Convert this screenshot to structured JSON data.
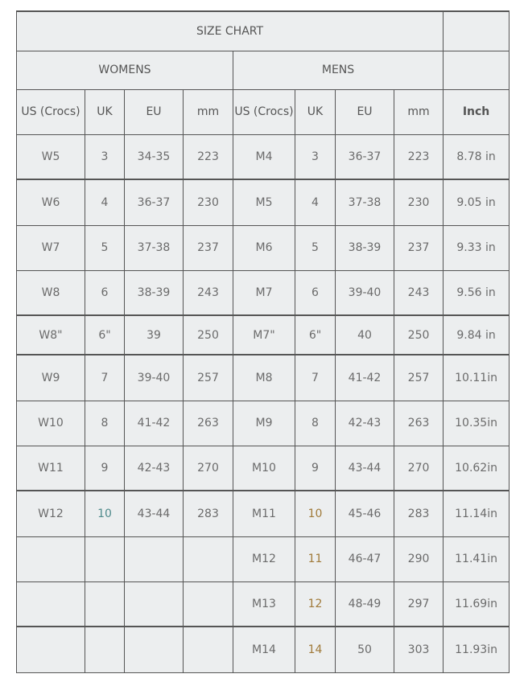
{
  "title": "SIZE CHART",
  "groups": {
    "womens": "WOMENS",
    "mens": "MENS"
  },
  "headers": [
    "US (Crocs)",
    "UK",
    "EU",
    "mm",
    "US (Crocs)",
    "UK",
    "EU",
    "mm",
    "Inch"
  ],
  "rows": [
    [
      "W5",
      "3",
      "34-35",
      "223",
      "M4",
      "3",
      "36-37",
      "223",
      "8.78 in"
    ],
    [
      "W6",
      "4",
      "36-37",
      "230",
      "M5",
      "4",
      "37-38",
      "230",
      "9.05 in"
    ],
    [
      "W7",
      "5",
      "37-38",
      "237",
      "M6",
      "5",
      "38-39",
      "237",
      "9.33 in"
    ],
    [
      "W8",
      "6",
      "38-39",
      "243",
      "M7",
      "6",
      "39-40",
      "243",
      "9.56 in"
    ],
    [
      "W8\"",
      "6\"",
      "39",
      "250",
      "M7\"",
      "6\"",
      "40",
      "250",
      "9.84 in"
    ],
    [
      "W9",
      "7",
      "39-40",
      "257",
      "M8",
      "7",
      "41-42",
      "257",
      "10.11in"
    ],
    [
      "W10",
      "8",
      "41-42",
      "263",
      "M9",
      "8",
      "42-43",
      "263",
      "10.35in"
    ],
    [
      "W11",
      "9",
      "42-43",
      "270",
      "M10",
      "9",
      "43-44",
      "270",
      "10.62in"
    ],
    [
      "W12",
      "10",
      "43-44",
      "283",
      "M11",
      "10",
      "45-46",
      "283",
      "11.14in"
    ],
    [
      "",
      "",
      "",
      "",
      "M12",
      "11",
      "46-47",
      "290",
      "11.41in"
    ],
    [
      "",
      "",
      "",
      "",
      "M13",
      "12",
      "48-49",
      "297",
      "11.69in"
    ],
    [
      "",
      "",
      "",
      "",
      "M14",
      "14",
      "50",
      "303",
      "11.93in"
    ]
  ]
}
